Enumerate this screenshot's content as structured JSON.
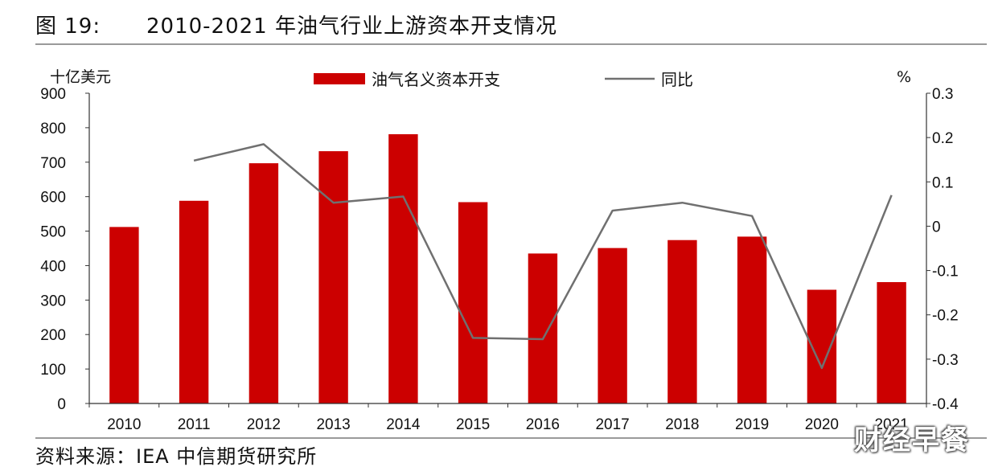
{
  "figure": {
    "label": "图 19:",
    "title": "2010-2021 年油气行业上游资本开支情况",
    "source": "资料来源：IEA 中信期货研究所",
    "watermark": "财经早餐"
  },
  "chart_data": {
    "type": "bar",
    "categories": [
      "2010",
      "2011",
      "2012",
      "2013",
      "2014",
      "2015",
      "2016",
      "2017",
      "2018",
      "2019",
      "2020",
      "2021"
    ],
    "series": [
      {
        "name": "油气名义资本开支",
        "type": "bar",
        "axis": "left",
        "color": "#cc0000",
        "values": [
          512,
          588,
          697,
          732,
          781,
          584,
          435,
          451,
          474,
          484,
          330,
          352
        ]
      },
      {
        "name": "同比",
        "type": "line",
        "axis": "right",
        "color": "#707070",
        "values": [
          null,
          0.148,
          0.185,
          0.053,
          0.067,
          -0.252,
          -0.255,
          0.035,
          0.053,
          0.023,
          -0.32,
          0.07
        ]
      }
    ],
    "y_left": {
      "label": "十亿美元",
      "min": 0,
      "max": 900,
      "ticks": [
        0,
        100,
        200,
        300,
        400,
        500,
        600,
        700,
        800,
        900
      ]
    },
    "y_right": {
      "label": "%",
      "min": -0.4,
      "max": 0.3,
      "ticks": [
        0.3,
        0.2,
        0.1,
        0,
        -0.1,
        -0.2,
        -0.3,
        -0.4
      ],
      "tick_labels": [
        "0.3",
        "0.2",
        "0.1",
        "0",
        "-0.1",
        "-0.2",
        "-0.3",
        "-0.4"
      ]
    },
    "x_tick_labels": [
      "2010",
      "2011",
      "2012",
      "2013",
      "2014",
      "2015",
      "2016",
      "2017",
      "2018",
      "2019",
      "2020",
      "2021"
    ],
    "legend": {
      "placement": "top-center"
    },
    "grid": false
  }
}
